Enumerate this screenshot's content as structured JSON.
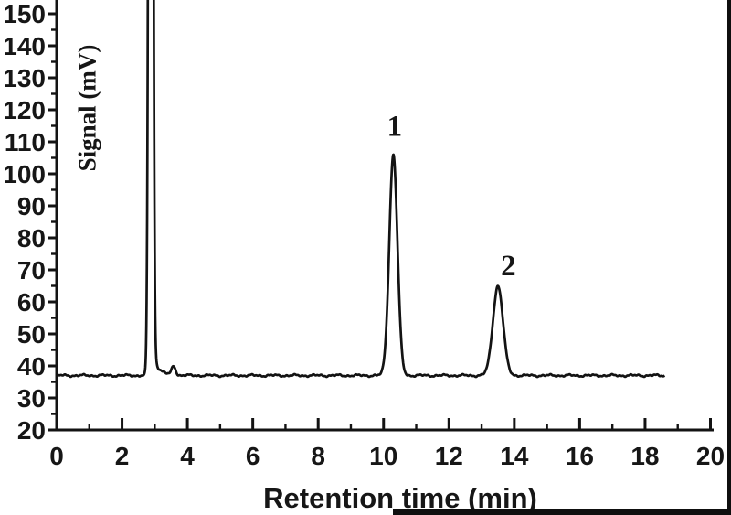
{
  "figure": {
    "background": "#ffffff",
    "line_color": "#131313",
    "text_color": "#161616",
    "border_color": "#0f0f0f"
  },
  "chart_data": {
    "type": "line",
    "chart_kind": "chromatogram",
    "title": "",
    "xlabel": "Retention time (min)",
    "ylabel": "Signal (mV)",
    "xlim": [
      0,
      20
    ],
    "ylim_visible": [
      20,
      150
    ],
    "x_major_ticks": [
      0,
      2,
      4,
      6,
      8,
      10,
      12,
      14,
      16,
      18,
      20
    ],
    "x_minor_tick_step": 1,
    "y_major_ticks": [
      20,
      30,
      40,
      50,
      60,
      70,
      80,
      90,
      100,
      110,
      120,
      130,
      140,
      150
    ],
    "y_minor_tick_step": 5,
    "grid": false,
    "legend": null,
    "top_clipped": true,
    "baseline_mV": 37,
    "noise_mV": 0.45,
    "trace": {
      "start_min": 0,
      "end_min": 18.6
    },
    "peaks": [
      {
        "name": "solvent-front",
        "label": "",
        "retention_min": 2.88,
        "apex_mV": null,
        "clipped_above_mV": 150,
        "amplitude_mV": 600,
        "sigma_min": 0.05,
        "tail_amplitude_mV": 9,
        "tail_tau_min": 0.18
      },
      {
        "name": "system-blip",
        "label": "",
        "retention_min": 3.58,
        "apex_mV": 40,
        "amplitude_mV": 2.8,
        "sigma_min": 0.06,
        "tail_amplitude_mV": 0,
        "tail_tau_min": 0
      },
      {
        "name": "peak-1",
        "label": "1",
        "retention_min": 10.3,
        "apex_mV": 106,
        "amplitude_mV": 69,
        "sigma_min": 0.125,
        "tail_amplitude_mV": 0,
        "tail_tau_min": 0
      },
      {
        "name": "peak-2",
        "label": "2",
        "retention_min": 13.5,
        "apex_mV": 65,
        "amplitude_mV": 28,
        "sigma_min": 0.155,
        "tail_amplitude_mV": 0,
        "tail_tau_min": 0
      }
    ],
    "annotations": [
      {
        "text": "1",
        "t_min": 10.34,
        "mV": 115
      },
      {
        "text": "2",
        "t_min": 13.82,
        "mV": 71.5
      }
    ]
  }
}
